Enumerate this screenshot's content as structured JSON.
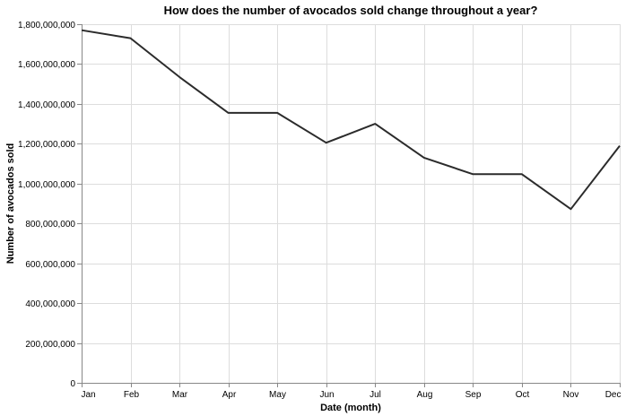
{
  "chart_data": {
    "type": "line",
    "title": "How does the number of avocados sold change throughout a year?",
    "xlabel": "Date (month)",
    "ylabel": "Number of avocados sold",
    "categories": [
      "Jan",
      "Feb",
      "Mar",
      "Apr",
      "May",
      "Jun",
      "Jul",
      "Aug",
      "Sep",
      "Oct",
      "Nov",
      "Dec"
    ],
    "ylim": [
      0,
      1800000000
    ],
    "yticks": [
      0,
      200000000,
      400000000,
      600000000,
      800000000,
      1000000000,
      1200000000,
      1400000000,
      1600000000,
      1800000000
    ],
    "ytick_labels": [
      "0",
      "200,000,000",
      "400,000,000",
      "600,000,000",
      "800,000,000",
      "1,000,000,000",
      "1,200,000,000",
      "1,400,000,000",
      "1,600,000,000",
      "1,800,000,000"
    ],
    "grid": true,
    "line_color": "#2b2b2b",
    "series": [
      {
        "values": [
          1770000000,
          1730000000,
          1535000000,
          1355000000,
          1355000000,
          1205000000,
          1300000000,
          1130000000,
          1047000000,
          1047000000,
          872000000,
          1190000000
        ]
      }
    ]
  }
}
